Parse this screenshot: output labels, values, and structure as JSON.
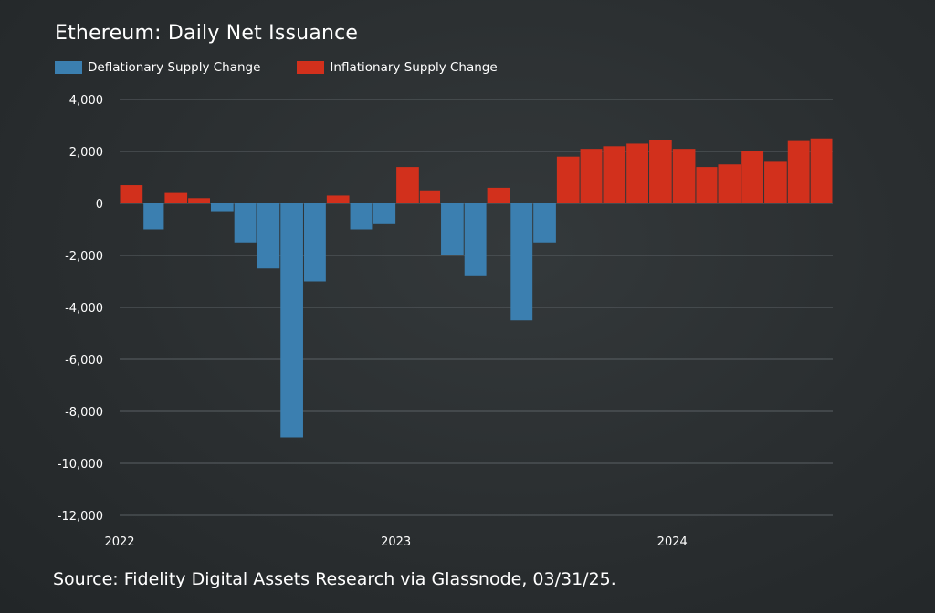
{
  "chart_data": {
    "type": "area",
    "title": "Ethereum: Daily Net Issuance",
    "source": "Source: Fidelity Digital Assets Research via Glassnode, 03/31/25.",
    "series": [
      {
        "name": "Deflationary Supply Change",
        "color": "#3b7fb0",
        "sign": "negative"
      },
      {
        "name": "Inflationary Supply Change",
        "color": "#d2301c",
        "sign": "positive"
      }
    ],
    "x_ticks": [
      "2022",
      "2023",
      "2024"
    ],
    "y_ticks": [
      4000,
      2000,
      0,
      -2000,
      -4000,
      -6000,
      -8000,
      -10000,
      -12000
    ],
    "y_tick_labels": [
      "4,000",
      "2,000",
      "0",
      "-2,000",
      "-4,000",
      "-6,000",
      "-8,000",
      "-10,000",
      "-12,000"
    ],
    "ylim": [
      -12000,
      4000
    ],
    "x_range": [
      "2022-01-01",
      "2024-07-31"
    ],
    "grid": true,
    "legend": "top-left",
    "x": [
      "2022-01",
      "2022-02",
      "2022-03",
      "2022-04",
      "2022-05",
      "2022-06",
      "2022-07",
      "2022-08",
      "2022-09",
      "2022-10",
      "2022-11",
      "2022-12",
      "2023-01",
      "2023-02",
      "2023-03",
      "2023-04",
      "2023-05",
      "2023-06",
      "2023-07",
      "2023-08",
      "2023-09",
      "2023-10",
      "2023-11",
      "2023-12",
      "2024-01",
      "2024-02",
      "2024-03",
      "2024-04",
      "2024-05",
      "2024-06",
      "2024-07"
    ],
    "values": [
      700,
      -1000,
      400,
      200,
      -300,
      -1500,
      -2500,
      -9000,
      -3000,
      300,
      -1000,
      -800,
      1400,
      500,
      -2000,
      -2800,
      600,
      -4500,
      -1500,
      1800,
      2100,
      2200,
      2300,
      2450,
      2100,
      1400,
      1500,
      2000,
      1600,
      2400,
      2500
    ]
  }
}
